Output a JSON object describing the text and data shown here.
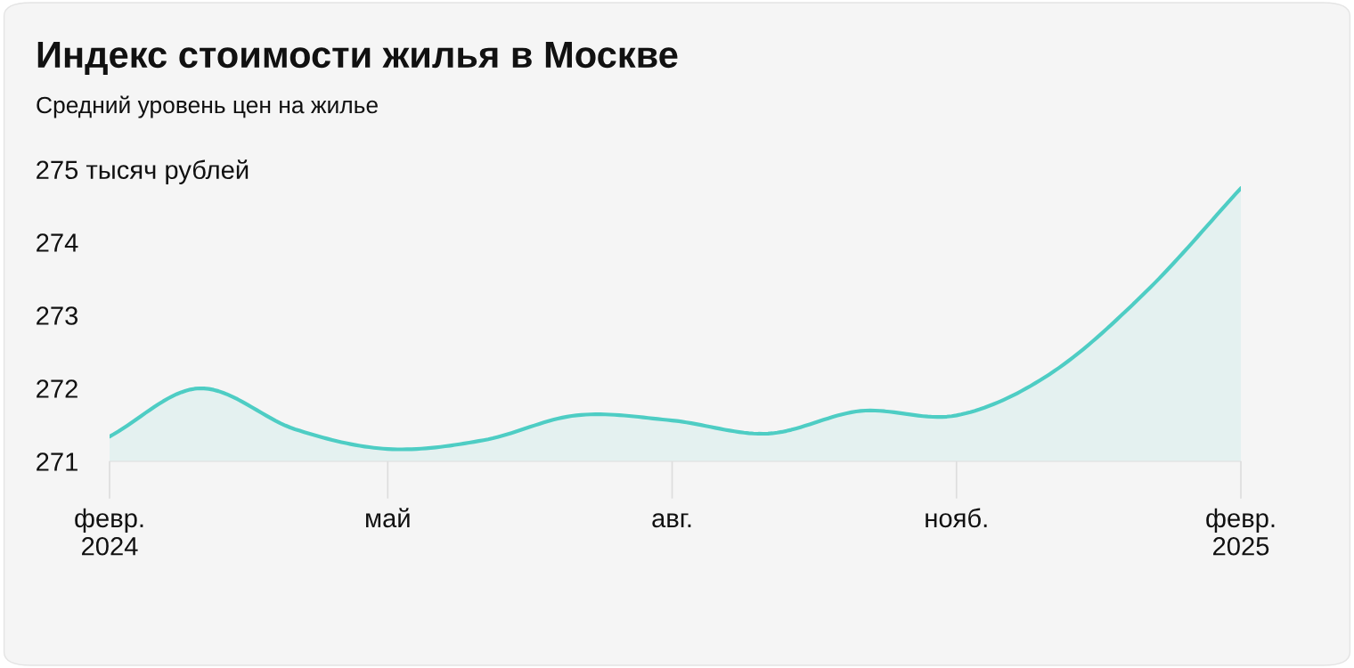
{
  "chart_data": {
    "type": "area",
    "title": "Индекс стоимости жилья в Москве",
    "subtitle": "Средний уровень цен на жилье",
    "x": [
      "2024-02",
      "2024-03",
      "2024-04",
      "2024-05",
      "2024-06",
      "2024-07",
      "2024-08",
      "2024-09",
      "2024-10",
      "2024-11",
      "2024-12",
      "2025-01",
      "2025-02"
    ],
    "series": [
      {
        "color": "#4ecdc4",
        "values": [
          271.34,
          272.0,
          271.44,
          271.17,
          271.29,
          271.63,
          271.56,
          271.38,
          271.69,
          271.63,
          272.19,
          273.31,
          274.74
        ]
      }
    ],
    "xlim": [
      "2024-02",
      "2025-02"
    ],
    "xticks": [
      {
        "value": "2024-02",
        "label": "февр.\n2024"
      },
      {
        "value": "2024-05",
        "label": "май"
      },
      {
        "value": "2024-08",
        "label": "авг."
      },
      {
        "value": "2024-11",
        "label": "нояб."
      },
      {
        "value": "2025-02",
        "label": "февр.\n2025"
      }
    ],
    "ylim": [
      271,
      275
    ],
    "yticks": [
      271,
      272,
      273,
      274,
      {
        "value": 275,
        "label": "275 тысяч рублей"
      }
    ],
    "grid": false
  }
}
